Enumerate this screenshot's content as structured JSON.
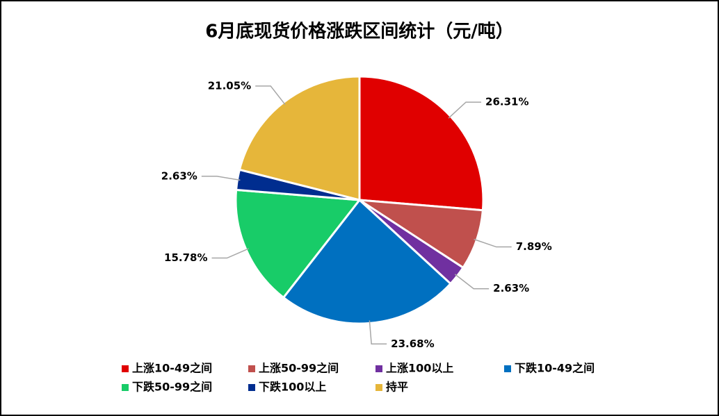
{
  "chart_data": {
    "type": "pie",
    "title": "6月底现货价格涨跌区间统计（元/吨）",
    "categories": [
      "上涨10-49之间",
      "上涨50-99之间",
      "上涨100以上",
      "下跌10-49之间",
      "下跌50-99之间",
      "下跌100以上",
      "持平"
    ],
    "values": [
      26.31,
      7.89,
      2.63,
      23.68,
      15.78,
      2.63,
      21.05
    ],
    "value_labels": [
      "26.31%",
      "7.89%",
      "2.63%",
      "23.68%",
      "15.78%",
      "2.63%",
      "21.05%"
    ],
    "colors": [
      "#e00000",
      "#c0504d",
      "#7030a0",
      "#0070c0",
      "#18cc68",
      "#002d8f",
      "#e6b63a"
    ],
    "legend": "bottom"
  }
}
